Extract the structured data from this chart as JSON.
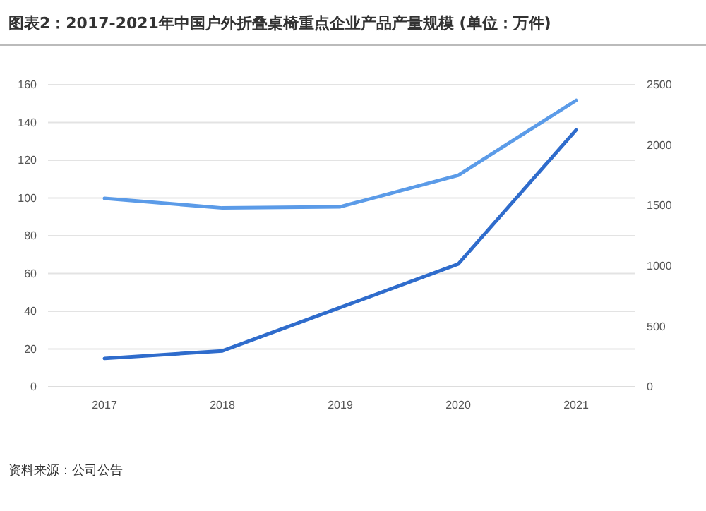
{
  "chart_data": {
    "type": "line",
    "title": "图表2：2017-2021年中国户外折叠桌椅重点企业产品产量规模 (单位：万件)",
    "categories": [
      "2017",
      "2018",
      "2019",
      "2020",
      "2021"
    ],
    "series": [
      {
        "color": "#2f6ccc",
        "values": [
          15,
          19,
          42,
          65,
          136
        ]
      },
      {
        "color": "#5b9be8",
        "axis": "y2",
        "values": [
          1560,
          1480,
          1490,
          1750,
          2370
        ]
      }
    ],
    "ylim": [
      0,
      160
    ],
    "yticks": [
      0,
      20,
      40,
      60,
      80,
      100,
      120,
      140,
      160
    ],
    "y2lim": [
      0,
      2500
    ],
    "y2ticks": [
      0,
      500,
      1000,
      1500,
      2000,
      2500
    ],
    "grid": "y",
    "annotations": [
      "资料来源：公司公告"
    ]
  }
}
